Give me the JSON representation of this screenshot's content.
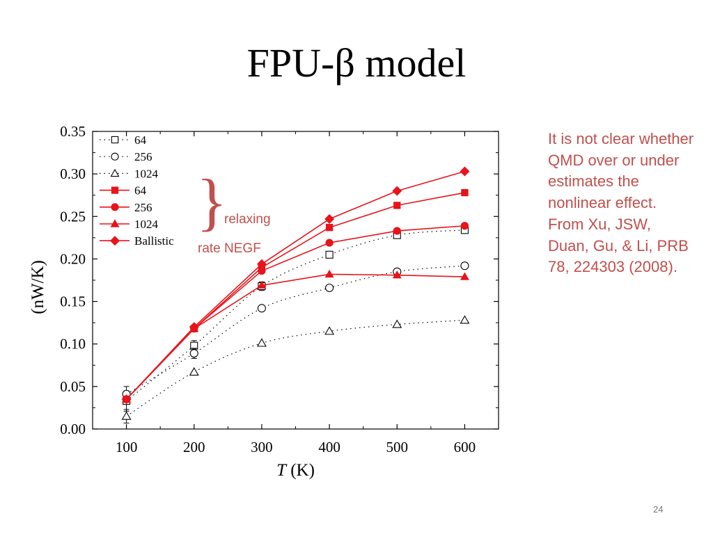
{
  "slide": {
    "title": "FPU-β model",
    "note": "It is not clear whether QMD over or under estimates the nonlinear effect. From Xu, JSW, Duan, Gu, & Li, PRB 78, 224303 (2008).",
    "brace_labels": [
      "relaxing",
      "rate NEGF"
    ],
    "page_number": "24"
  },
  "colors": {
    "red": "#e8131b",
    "note": "#c0504d",
    "black": "#000000"
  },
  "chart_data": {
    "type": "line",
    "xlabel_italic": "T",
    "xlabel_unit": " (K)",
    "ylabel": "(nW/K)",
    "xlim": [
      50,
      650
    ],
    "ylim": [
      0,
      0.35
    ],
    "x_ticks": [
      100,
      200,
      300,
      400,
      500,
      600
    ],
    "y_ticks": [
      "0.00",
      "0.05",
      "0.10",
      "0.15",
      "0.20",
      "0.25",
      "0.30",
      "0.35"
    ],
    "legend_position": "top-left",
    "x": [
      100,
      200,
      300,
      400,
      500,
      600
    ],
    "series": [
      {
        "name": "64",
        "group": "QMD",
        "marker": "square-open",
        "color": "#000000",
        "style": "dotted",
        "values": [
          0.033,
          0.098,
          0.168,
          0.205,
          0.228,
          0.234
        ],
        "errors": [
          0.012,
          0.006,
          0.005,
          0.0,
          0.0,
          0.0
        ]
      },
      {
        "name": "256",
        "group": "QMD",
        "marker": "circle-open",
        "color": "#000000",
        "style": "dotted",
        "values": [
          0.041,
          0.089,
          0.142,
          0.166,
          0.185,
          0.192
        ],
        "errors": [
          0.009,
          0.006,
          0.0,
          0.0,
          0.0,
          0.0
        ]
      },
      {
        "name": "1024",
        "group": "QMD",
        "marker": "triangle-open",
        "color": "#000000",
        "style": "dotted",
        "values": [
          0.015,
          0.067,
          0.101,
          0.115,
          0.123,
          0.128
        ],
        "errors": [
          0.008,
          0.0,
          0.0,
          0.0,
          0.0,
          0.0
        ]
      },
      {
        "name": "64",
        "group": "NEGF",
        "marker": "square-filled",
        "color": "#e8131b",
        "style": "solid",
        "values": [
          0.035,
          0.118,
          0.19,
          0.237,
          0.263,
          0.278
        ],
        "errors": [
          0,
          0,
          0,
          0,
          0,
          0
        ]
      },
      {
        "name": "256",
        "group": "NEGF",
        "marker": "circle-filled",
        "color": "#e8131b",
        "style": "solid",
        "values": [
          0.035,
          0.118,
          0.186,
          0.219,
          0.233,
          0.239
        ],
        "errors": [
          0,
          0,
          0,
          0,
          0,
          0
        ]
      },
      {
        "name": "1024",
        "group": "NEGF",
        "marker": "triangle-filled",
        "color": "#e8131b",
        "style": "solid",
        "values": [
          0.035,
          0.118,
          0.169,
          0.182,
          0.181,
          0.179
        ],
        "errors": [
          0,
          0,
          0,
          0,
          0,
          0
        ]
      },
      {
        "name": "Ballistic",
        "group": "NEGF",
        "marker": "diamond-filled",
        "color": "#e8131b",
        "style": "solid",
        "values": [
          0.035,
          0.12,
          0.194,
          0.247,
          0.28,
          0.303
        ],
        "errors": [
          0,
          0,
          0,
          0,
          0,
          0
        ]
      }
    ]
  }
}
